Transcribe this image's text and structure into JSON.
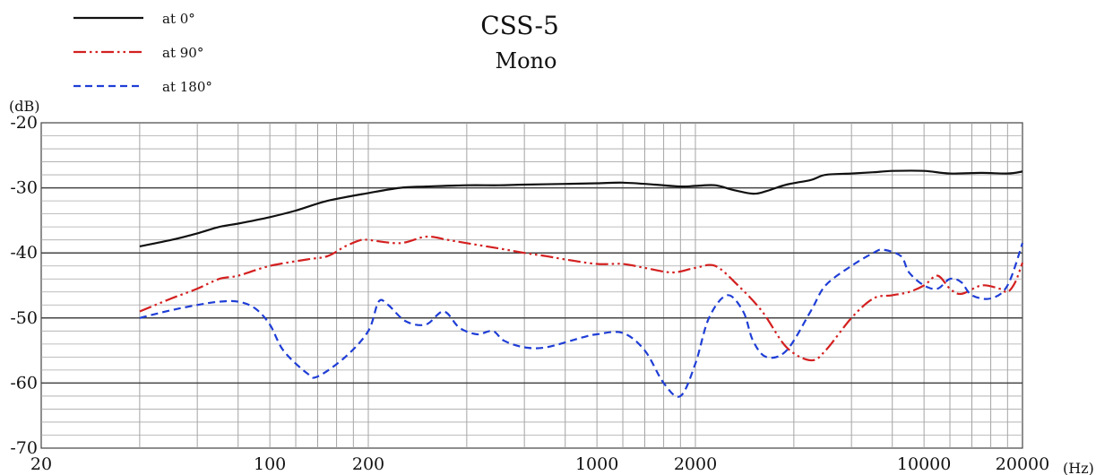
{
  "chart_data": {
    "type": "line",
    "title": "CSS-5",
    "subtitle": "Mono",
    "xlabel": "(Hz)",
    "ylabel": "(dB)",
    "xscale": "log",
    "xlim": [
      20,
      20000
    ],
    "ylim": [
      -70,
      -20
    ],
    "grid": true,
    "legend_position": "top-left",
    "x_tick_labels": [
      "20",
      "100",
      "200",
      "1000",
      "2000",
      "10000",
      "20000"
    ],
    "x_ticks": [
      20,
      100,
      200,
      1000,
      2000,
      10000,
      20000
    ],
    "y_tick_labels": [
      "-20",
      "-30",
      "-40",
      "-50",
      "-60",
      "-70"
    ],
    "y_ticks": [
      -20,
      -30,
      -40,
      -50,
      -60,
      -70
    ],
    "series": [
      {
        "name": "at 0°",
        "color": "#111111",
        "style": "solid",
        "points": [
          [
            40,
            -39
          ],
          [
            50,
            -38
          ],
          [
            60,
            -37
          ],
          [
            70,
            -36
          ],
          [
            80,
            -35.5
          ],
          [
            100,
            -34.5
          ],
          [
            120,
            -33.5
          ],
          [
            150,
            -32
          ],
          [
            200,
            -30.8
          ],
          [
            250,
            -30
          ],
          [
            300,
            -29.8
          ],
          [
            400,
            -29.6
          ],
          [
            500,
            -29.6
          ],
          [
            600,
            -29.5
          ],
          [
            800,
            -29.4
          ],
          [
            1000,
            -29.3
          ],
          [
            1200,
            -29.2
          ],
          [
            1500,
            -29.5
          ],
          [
            1800,
            -29.8
          ],
          [
            2000,
            -29.7
          ],
          [
            2300,
            -29.6
          ],
          [
            2600,
            -30.3
          ],
          [
            3000,
            -30.9
          ],
          [
            3300,
            -30.5
          ],
          [
            3800,
            -29.5
          ],
          [
            4500,
            -28.8
          ],
          [
            5000,
            -28
          ],
          [
            6000,
            -27.8
          ],
          [
            7000,
            -27.6
          ],
          [
            8000,
            -27.4
          ],
          [
            10000,
            -27.4
          ],
          [
            12000,
            -27.8
          ],
          [
            15000,
            -27.7
          ],
          [
            18000,
            -27.8
          ],
          [
            20000,
            -27.5
          ]
        ]
      },
      {
        "name": "at 90°",
        "color": "#d42020",
        "style": "dashdotdot",
        "points": [
          [
            40,
            -49
          ],
          [
            50,
            -47
          ],
          [
            60,
            -45.5
          ],
          [
            70,
            -44
          ],
          [
            80,
            -43.5
          ],
          [
            100,
            -42
          ],
          [
            130,
            -41
          ],
          [
            150,
            -40.5
          ],
          [
            170,
            -39
          ],
          [
            190,
            -38
          ],
          [
            200,
            -38
          ],
          [
            250,
            -38.5
          ],
          [
            300,
            -37.5
          ],
          [
            350,
            -38
          ],
          [
            400,
            -38.5
          ],
          [
            500,
            -39.3
          ],
          [
            600,
            -40
          ],
          [
            700,
            -40.5
          ],
          [
            800,
            -41
          ],
          [
            1000,
            -41.7
          ],
          [
            1200,
            -41.7
          ],
          [
            1400,
            -42.3
          ],
          [
            1700,
            -43
          ],
          [
            2000,
            -42.3
          ],
          [
            2300,
            -42
          ],
          [
            2700,
            -45
          ],
          [
            3200,
            -49
          ],
          [
            3800,
            -54.5
          ],
          [
            4500,
            -56.5
          ],
          [
            5000,
            -55
          ],
          [
            6000,
            -50
          ],
          [
            7000,
            -47
          ],
          [
            8000,
            -46.5
          ],
          [
            9000,
            -46
          ],
          [
            10000,
            -45
          ],
          [
            11000,
            -43.5
          ],
          [
            12000,
            -45.5
          ],
          [
            13000,
            -46.3
          ],
          [
            15000,
            -45
          ],
          [
            17000,
            -45.5
          ],
          [
            18000,
            -46
          ],
          [
            19000,
            -44.5
          ],
          [
            20000,
            -41.5
          ]
        ]
      },
      {
        "name": "at 180°",
        "color": "#1f3ed6",
        "style": "dashed",
        "points": [
          [
            40,
            -50
          ],
          [
            50,
            -48.8
          ],
          [
            60,
            -48
          ],
          [
            70,
            -47.5
          ],
          [
            80,
            -47.5
          ],
          [
            90,
            -48.5
          ],
          [
            100,
            -51
          ],
          [
            110,
            -55
          ],
          [
            130,
            -58.5
          ],
          [
            140,
            -59
          ],
          [
            170,
            -56
          ],
          [
            200,
            -52
          ],
          [
            215,
            -47.5
          ],
          [
            230,
            -48
          ],
          [
            260,
            -50.5
          ],
          [
            300,
            -51
          ],
          [
            340,
            -49
          ],
          [
            380,
            -51.5
          ],
          [
            430,
            -52.5
          ],
          [
            480,
            -52
          ],
          [
            520,
            -53.5
          ],
          [
            600,
            -54.5
          ],
          [
            700,
            -54.5
          ],
          [
            900,
            -53
          ],
          [
            1000,
            -52.5
          ],
          [
            1200,
            -52.3
          ],
          [
            1400,
            -55
          ],
          [
            1600,
            -60
          ],
          [
            1800,
            -62
          ],
          [
            2000,
            -57
          ],
          [
            2200,
            -50
          ],
          [
            2500,
            -46.5
          ],
          [
            2800,
            -49
          ],
          [
            3000,
            -53.5
          ],
          [
            3300,
            -56
          ],
          [
            3800,
            -55
          ],
          [
            4500,
            -49
          ],
          [
            5000,
            -45
          ],
          [
            6000,
            -42
          ],
          [
            7000,
            -40
          ],
          [
            7500,
            -39.5
          ],
          [
            8500,
            -40.5
          ],
          [
            9000,
            -43
          ],
          [
            10000,
            -45
          ],
          [
            11000,
            -45.5
          ],
          [
            12000,
            -44
          ],
          [
            13000,
            -44.5
          ],
          [
            14000,
            -46.5
          ],
          [
            16000,
            -47
          ],
          [
            18000,
            -45
          ],
          [
            20000,
            -38.5
          ]
        ]
      }
    ]
  }
}
